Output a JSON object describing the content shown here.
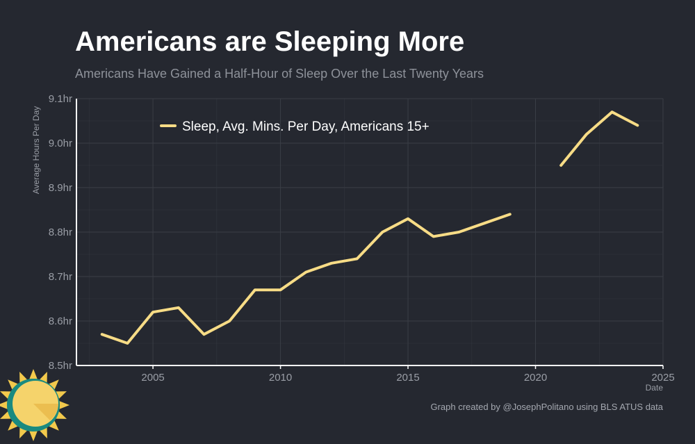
{
  "page": {
    "title": "Americans are Sleeping More",
    "subtitle": "Americans Have Gained a Half-Hour of Sleep Over the Last Twenty Years",
    "caption": "Graph created by @JosephPolitano using BLS ATUS data",
    "logo_icon": "sun-icon"
  },
  "colors": {
    "background": "#252830",
    "line": "#f7dc86",
    "grid": "#3a3e46",
    "axis": "#ffffff",
    "sun_face": "#f5d36b",
    "sun_rays": "#f2c94c",
    "sun_ring": "#1a8a80"
  },
  "chart_data": {
    "type": "line",
    "title": "Americans are Sleeping More",
    "subtitle": "Americans Have Gained a Half-Hour of Sleep Over the Last Twenty Years",
    "xlabel": "Date",
    "ylabel": "Average Hours Per Day",
    "xlim": [
      2002.0,
      2025.0
    ],
    "ylim": [
      8.5,
      9.1
    ],
    "x_ticks": [
      2005,
      2010,
      2015,
      2020,
      2025
    ],
    "y_ticks": [
      {
        "value": 8.5,
        "label": "8.5hr"
      },
      {
        "value": 8.6,
        "label": "8.6hr"
      },
      {
        "value": 8.7,
        "label": "8.7hr"
      },
      {
        "value": 8.8,
        "label": "8.8hr"
      },
      {
        "value": 8.9,
        "label": "8.9hr"
      },
      {
        "value": 9.0,
        "label": "9.0hr"
      },
      {
        "value": 9.1,
        "label": "9.1hr"
      }
    ],
    "grid": true,
    "legend_position": "top-left",
    "series": [
      {
        "name": "Sleep, Avg. Mins. Per Day, Americans 15+",
        "color": "#f7dc86",
        "x": [
          2003,
          2004,
          2005,
          2006,
          2007,
          2008,
          2009,
          2010,
          2011,
          2012,
          2013,
          2014,
          2015,
          2016,
          2017,
          2018,
          2019,
          2020,
          2021,
          2022,
          2023,
          2024
        ],
        "y": [
          8.57,
          8.55,
          8.62,
          8.63,
          8.57,
          8.6,
          8.67,
          8.67,
          8.71,
          8.73,
          8.74,
          8.8,
          8.83,
          8.79,
          8.8,
          8.82,
          8.84,
          null,
          8.95,
          9.02,
          9.07,
          9.04
        ]
      }
    ]
  }
}
